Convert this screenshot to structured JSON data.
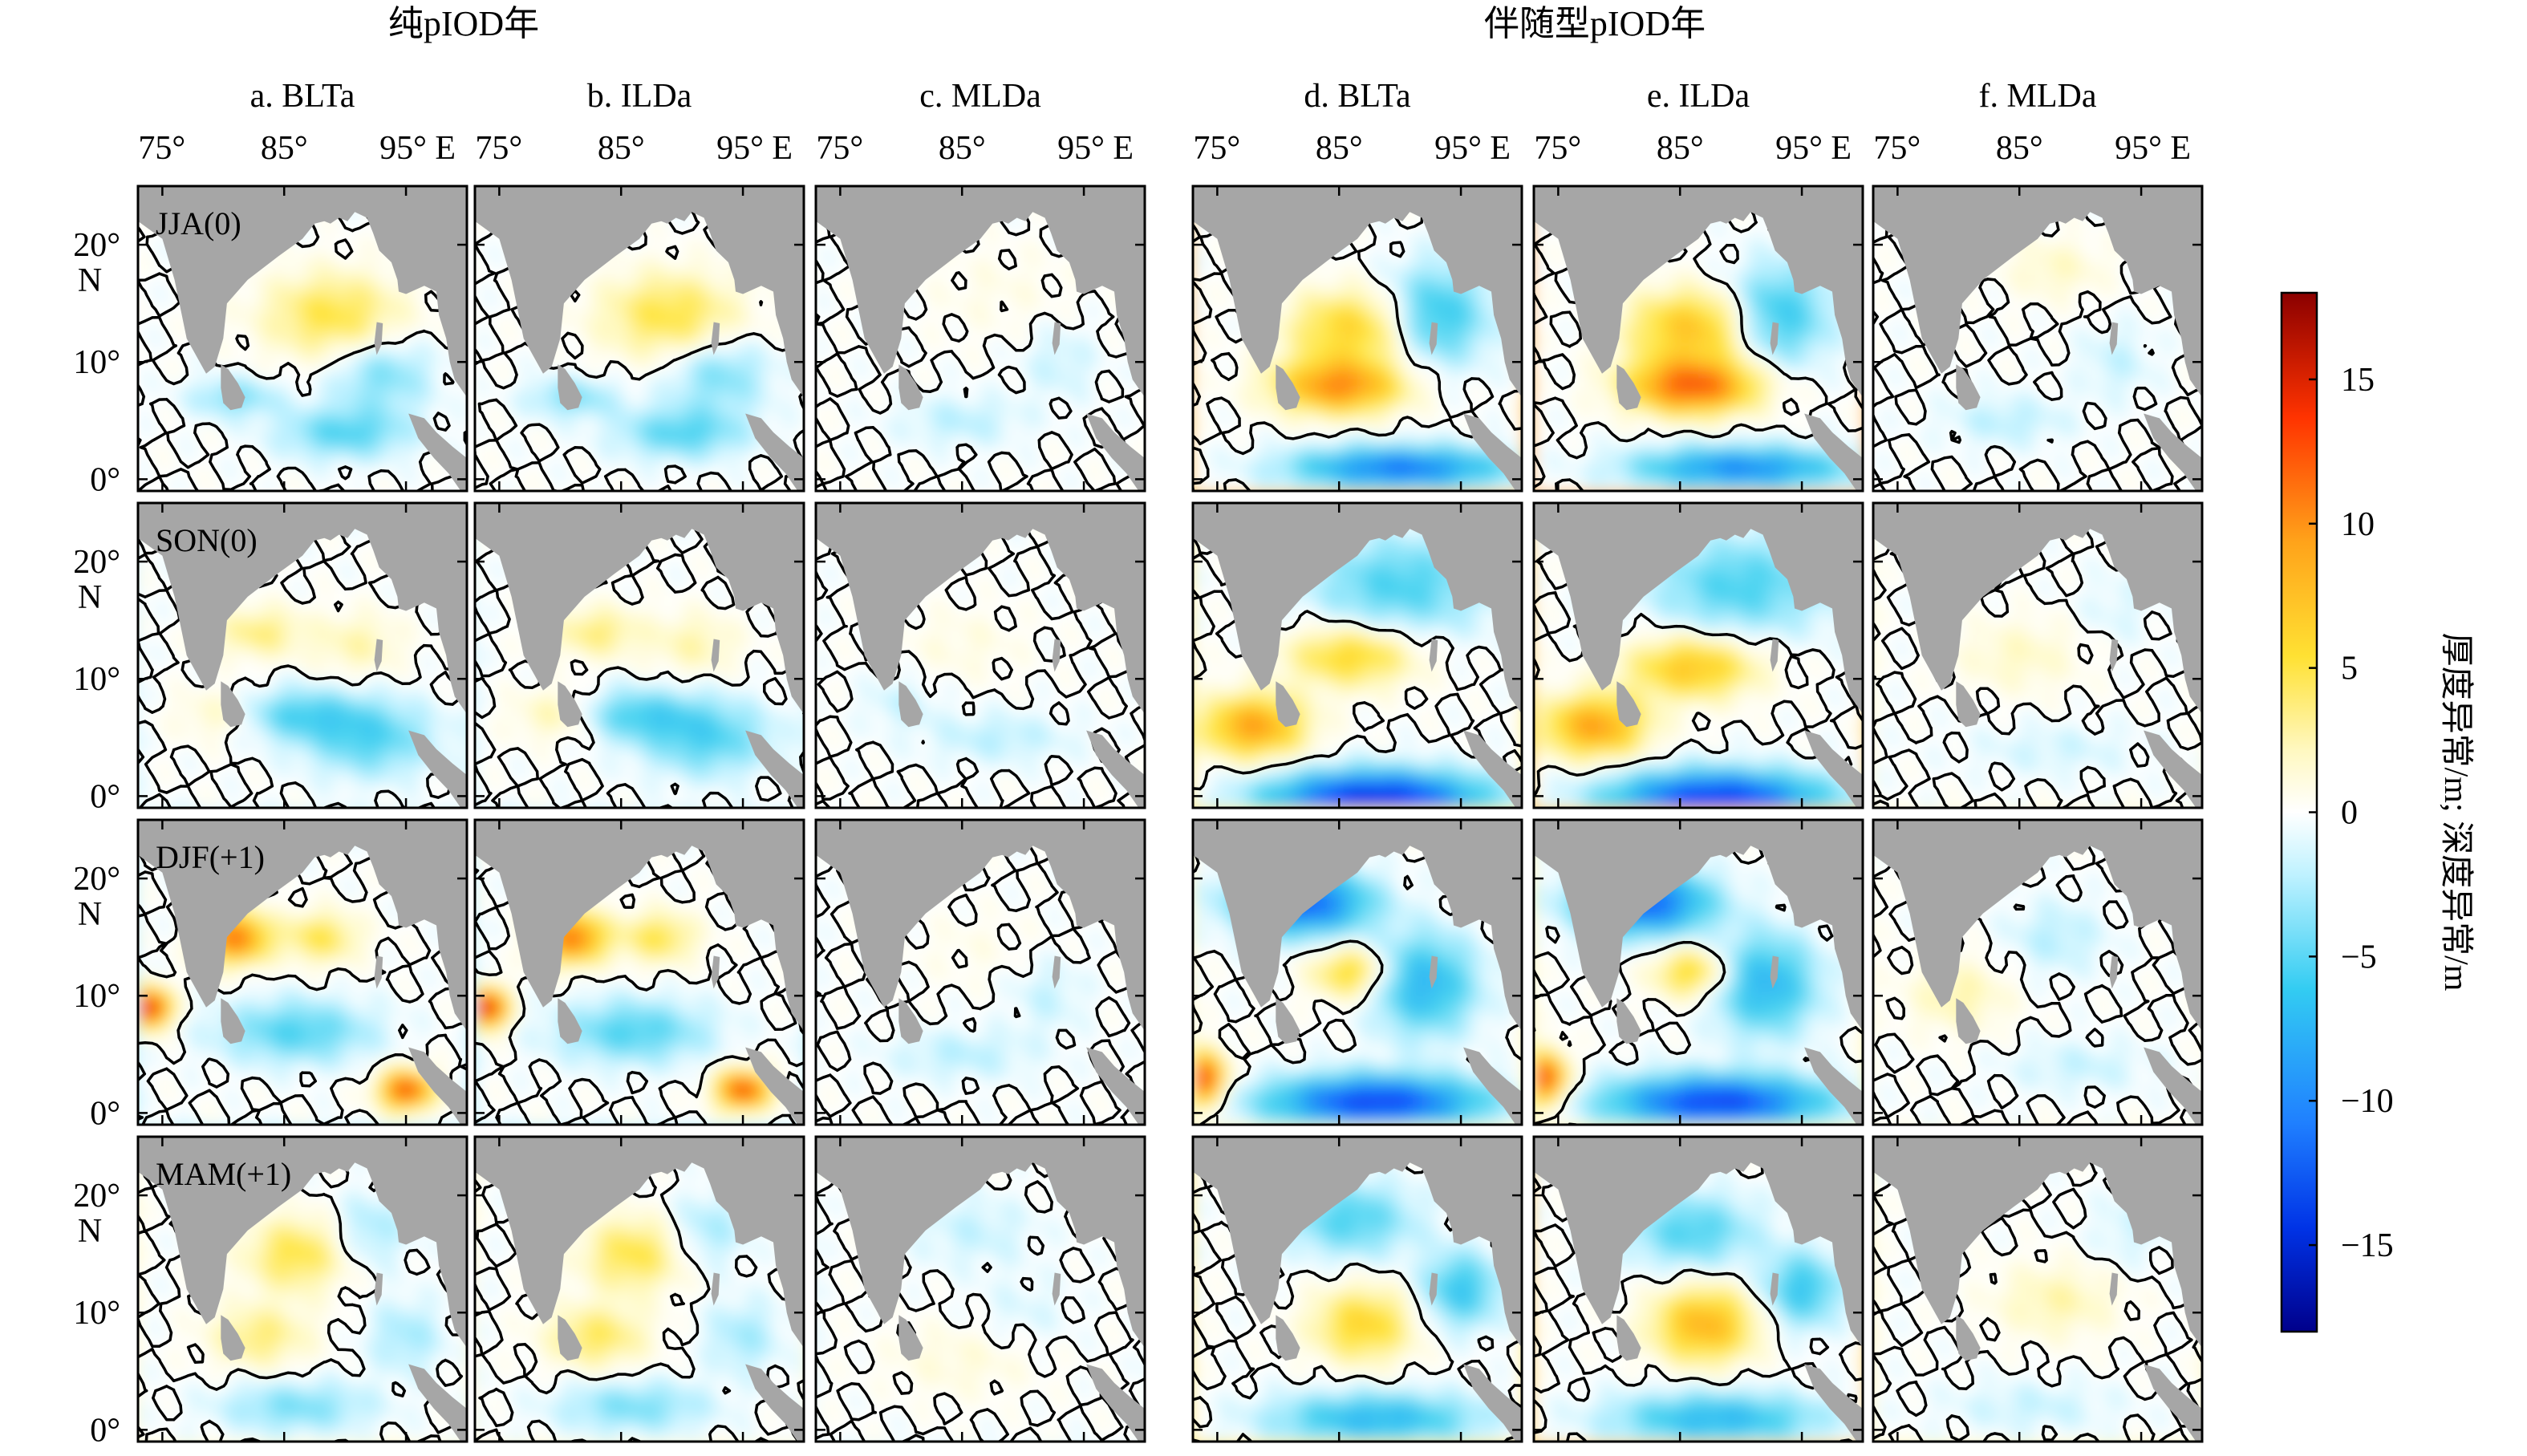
{
  "group_titles": [
    "纯pIOD年",
    "伴随型pIOD年"
  ],
  "chart_data": {
    "type": "heatmap",
    "groups": [
      {
        "title": "纯pIOD年",
        "columns": [
          "a. BLTa",
          "b. ILDa",
          "c. MLDa"
        ]
      },
      {
        "title": "伴随型pIOD年",
        "columns": [
          "d. BLTa",
          "e. ILDa",
          "f. MLDa"
        ]
      }
    ],
    "column_titles": [
      "a. BLTa",
      "b. ILDa",
      "c. MLDa",
      "d. BLTa",
      "e. ILDa",
      "f. MLDa"
    ],
    "row_labels": [
      "JJA(0)",
      "SON(0)",
      "DJF(+1)",
      "MAM(+1)"
    ],
    "x_tick_labels": [
      "75°",
      "85°",
      "95° E"
    ],
    "x_ticks": [
      75,
      85,
      95
    ],
    "y_tick_labels": [
      "0°",
      "10°",
      "20°"
    ],
    "y_ticks": [
      0,
      10,
      20
    ],
    "y_unit_label": "N",
    "xlim": [
      73,
      100
    ],
    "ylim": [
      -1,
      25
    ],
    "colorbar": {
      "label": "厚度异常/m; 深度异常/m",
      "range": [
        -18,
        18
      ],
      "ticks": [
        -15,
        -10,
        -5,
        0,
        5,
        10,
        15
      ],
      "tick_labels": [
        "−15",
        "−10",
        "−5",
        "0",
        "5",
        "10",
        "15"
      ],
      "colors": [
        "#00008b",
        "#0033e6",
        "#1f7fff",
        "#33ccf2",
        "#bff2ff",
        "#ffffff",
        "#fff8c0",
        "#ffe133",
        "#ffa31a",
        "#ff3300",
        "#8b0000"
      ]
    },
    "contour_level": 0,
    "land_color": "#a6a6a6",
    "panels": [
      {
        "col": 0,
        "row": 0,
        "features": [
          [
            89,
            14,
            5.5,
            3.5,
            4
          ],
          [
            81,
            7,
            3.5,
            1.5,
            -3
          ],
          [
            90,
            4,
            5,
            2,
            -4
          ],
          [
            93,
            9,
            4,
            3,
            -3
          ]
        ]
      },
      {
        "col": 1,
        "row": 0,
        "features": [
          [
            89,
            14,
            5.5,
            3.5,
            4
          ],
          [
            81,
            7,
            3.5,
            1.5,
            -3
          ],
          [
            90,
            4,
            5,
            2,
            -4
          ],
          [
            93,
            9,
            4,
            3,
            -3
          ]
        ]
      },
      {
        "col": 2,
        "row": 0,
        "features": [
          [
            88,
            16,
            6,
            4,
            0.6
          ],
          [
            85,
            5,
            5,
            2,
            -1.5
          ],
          [
            93,
            10,
            3,
            3,
            -1.2
          ]
        ]
      },
      {
        "col": 3,
        "row": 0,
        "features": [
          [
            85,
            8,
            5,
            2.2,
            9
          ],
          [
            86,
            13,
            5,
            3,
            5
          ],
          [
            90,
            1,
            8,
            1.6,
            -10
          ],
          [
            93,
            14,
            4,
            4,
            -5
          ]
        ]
      },
      {
        "col": 4,
        "row": 0,
        "features": [
          [
            86,
            8,
            5,
            2.2,
            11
          ],
          [
            86,
            13,
            5,
            3,
            6
          ],
          [
            90,
            1,
            8,
            1.6,
            -9
          ],
          [
            93,
            14,
            4,
            4,
            -5
          ]
        ]
      },
      {
        "col": 5,
        "row": 0,
        "features": [
          [
            88,
            18,
            4,
            2.5,
            1.5
          ],
          [
            84,
            5,
            5,
            2,
            -1.5
          ],
          [
            93,
            10,
            3,
            3,
            -1.2
          ]
        ]
      },
      {
        "col": 6,
        "row": 1,
        "features": [
          [
            83,
            14,
            3.5,
            2,
            3
          ],
          [
            91,
            13,
            3.5,
            2.5,
            2
          ],
          [
            80,
            7,
            3.5,
            2,
            2
          ],
          [
            86,
            7,
            5,
            2,
            -4
          ],
          [
            92,
            5,
            5,
            3,
            -4
          ]
        ]
      },
      {
        "col": 7,
        "row": 1,
        "features": [
          [
            83,
            14,
            3.5,
            2,
            3
          ],
          [
            91,
            13,
            3.5,
            2.5,
            2
          ],
          [
            80,
            7,
            3.5,
            2,
            2.5
          ],
          [
            86,
            7,
            5,
            2,
            -4
          ],
          [
            92,
            5,
            5,
            3,
            -4
          ]
        ]
      },
      {
        "col": 8,
        "row": 1,
        "features": [
          [
            85,
            13,
            5,
            3,
            0.8
          ],
          [
            88,
            5,
            6,
            2,
            -1.5
          ],
          [
            80,
            8,
            3,
            2,
            -1.2
          ]
        ]
      },
      {
        "col": 9,
        "row": 1,
        "features": [
          [
            78,
            6,
            4,
            2.5,
            8
          ],
          [
            86,
            12,
            5,
            2.5,
            5
          ],
          [
            88,
            0,
            8,
            2,
            -14
          ],
          [
            90,
            18,
            7,
            4,
            -4
          ]
        ]
      },
      {
        "col": 10,
        "row": 1,
        "features": [
          [
            78,
            6,
            4,
            2.5,
            8
          ],
          [
            86,
            11,
            5,
            2.5,
            6
          ],
          [
            88,
            0,
            8,
            2,
            -13
          ],
          [
            90,
            18,
            7,
            4,
            -4
          ]
        ]
      },
      {
        "col": 11,
        "row": 1,
        "features": [
          [
            85,
            12,
            5,
            3,
            1.5
          ],
          [
            88,
            4,
            7,
            2,
            -1
          ],
          [
            93,
            16,
            3,
            3,
            -0.8
          ]
        ]
      },
      {
        "col": 12,
        "row": 2,
        "features": [
          [
            81,
            15,
            2.5,
            2,
            10
          ],
          [
            88,
            15,
            3,
            2,
            4
          ],
          [
            86,
            7,
            6,
            2.5,
            -4
          ],
          [
            74,
            9,
            1.5,
            1.5,
            14
          ],
          [
            95,
            2,
            2,
            1.5,
            12
          ]
        ]
      },
      {
        "col": 13,
        "row": 2,
        "features": [
          [
            81,
            15,
            2.5,
            2,
            10
          ],
          [
            88,
            15,
            3,
            2,
            4
          ],
          [
            86,
            7,
            6,
            2.5,
            -4
          ],
          [
            74,
            9,
            1.5,
            1.5,
            14
          ],
          [
            95,
            2,
            2,
            1.5,
            12
          ]
        ]
      },
      {
        "col": 14,
        "row": 2,
        "features": [
          [
            86,
            14,
            5,
            3,
            0.5
          ],
          [
            85,
            5,
            6,
            2,
            -1.5
          ],
          [
            92,
            10,
            3,
            3,
            -1.2
          ]
        ]
      },
      {
        "col": 15,
        "row": 2,
        "features": [
          [
            86,
            12,
            3,
            2,
            5
          ],
          [
            82,
            18,
            5,
            2.5,
            -11
          ],
          [
            88,
            1,
            8,
            2,
            -13
          ],
          [
            92,
            11,
            4,
            4,
            -6
          ],
          [
            74,
            3,
            1.5,
            2,
            12
          ]
        ]
      },
      {
        "col": 16,
        "row": 2,
        "features": [
          [
            86,
            12,
            3,
            2,
            5
          ],
          [
            82,
            18,
            5,
            2.5,
            -11
          ],
          [
            88,
            1,
            8,
            2,
            -13
          ],
          [
            92,
            11,
            4,
            4,
            -6
          ],
          [
            74,
            3,
            1.5,
            2,
            12
          ]
        ]
      },
      {
        "col": 17,
        "row": 2,
        "features": [
          [
            80,
            10,
            4,
            3,
            2
          ],
          [
            88,
            15,
            4,
            3,
            -1.5
          ],
          [
            90,
            4,
            6,
            2,
            -1.2
          ]
        ]
      },
      {
        "col": 18,
        "row": 3,
        "features": [
          [
            86,
            15,
            4,
            3,
            4
          ],
          [
            83,
            8,
            4,
            2.5,
            3
          ],
          [
            86,
            2,
            6,
            2,
            -3
          ],
          [
            92,
            17,
            3,
            3,
            -2
          ],
          [
            95,
            8,
            3,
            3,
            -2
          ]
        ]
      },
      {
        "col": 19,
        "row": 3,
        "features": [
          [
            86,
            15,
            4,
            3,
            4
          ],
          [
            83,
            8,
            4,
            2.5,
            3.5
          ],
          [
            86,
            2,
            6,
            2,
            -3
          ],
          [
            92,
            17,
            3,
            3,
            -2
          ],
          [
            95,
            8,
            3,
            3,
            -2
          ]
        ]
      },
      {
        "col": 20,
        "row": 3,
        "features": [
          [
            86,
            17,
            5,
            3,
            -1.2
          ],
          [
            85,
            6,
            6,
            3,
            1
          ],
          [
            90,
            10,
            4,
            3,
            -0.8
          ]
        ]
      },
      {
        "col": 21,
        "row": 3,
        "features": [
          [
            87,
            9,
            4,
            3,
            5
          ],
          [
            86,
            18,
            5,
            3,
            -4
          ],
          [
            88,
            1,
            8,
            2,
            -6
          ],
          [
            95,
            12,
            3,
            3,
            -5
          ]
        ]
      },
      {
        "col": 22,
        "row": 3,
        "features": [
          [
            87,
            9,
            4,
            3,
            7
          ],
          [
            86,
            17,
            5,
            3,
            -4
          ],
          [
            88,
            1,
            8,
            2,
            -6
          ],
          [
            95,
            12,
            3,
            3,
            -5
          ]
        ]
      },
      {
        "col": 23,
        "row": 3,
        "features": [
          [
            88,
            11,
            5,
            3,
            2
          ],
          [
            86,
            2,
            7,
            2,
            -1.2
          ],
          [
            94,
            17,
            3,
            3,
            -1
          ]
        ]
      }
    ]
  }
}
